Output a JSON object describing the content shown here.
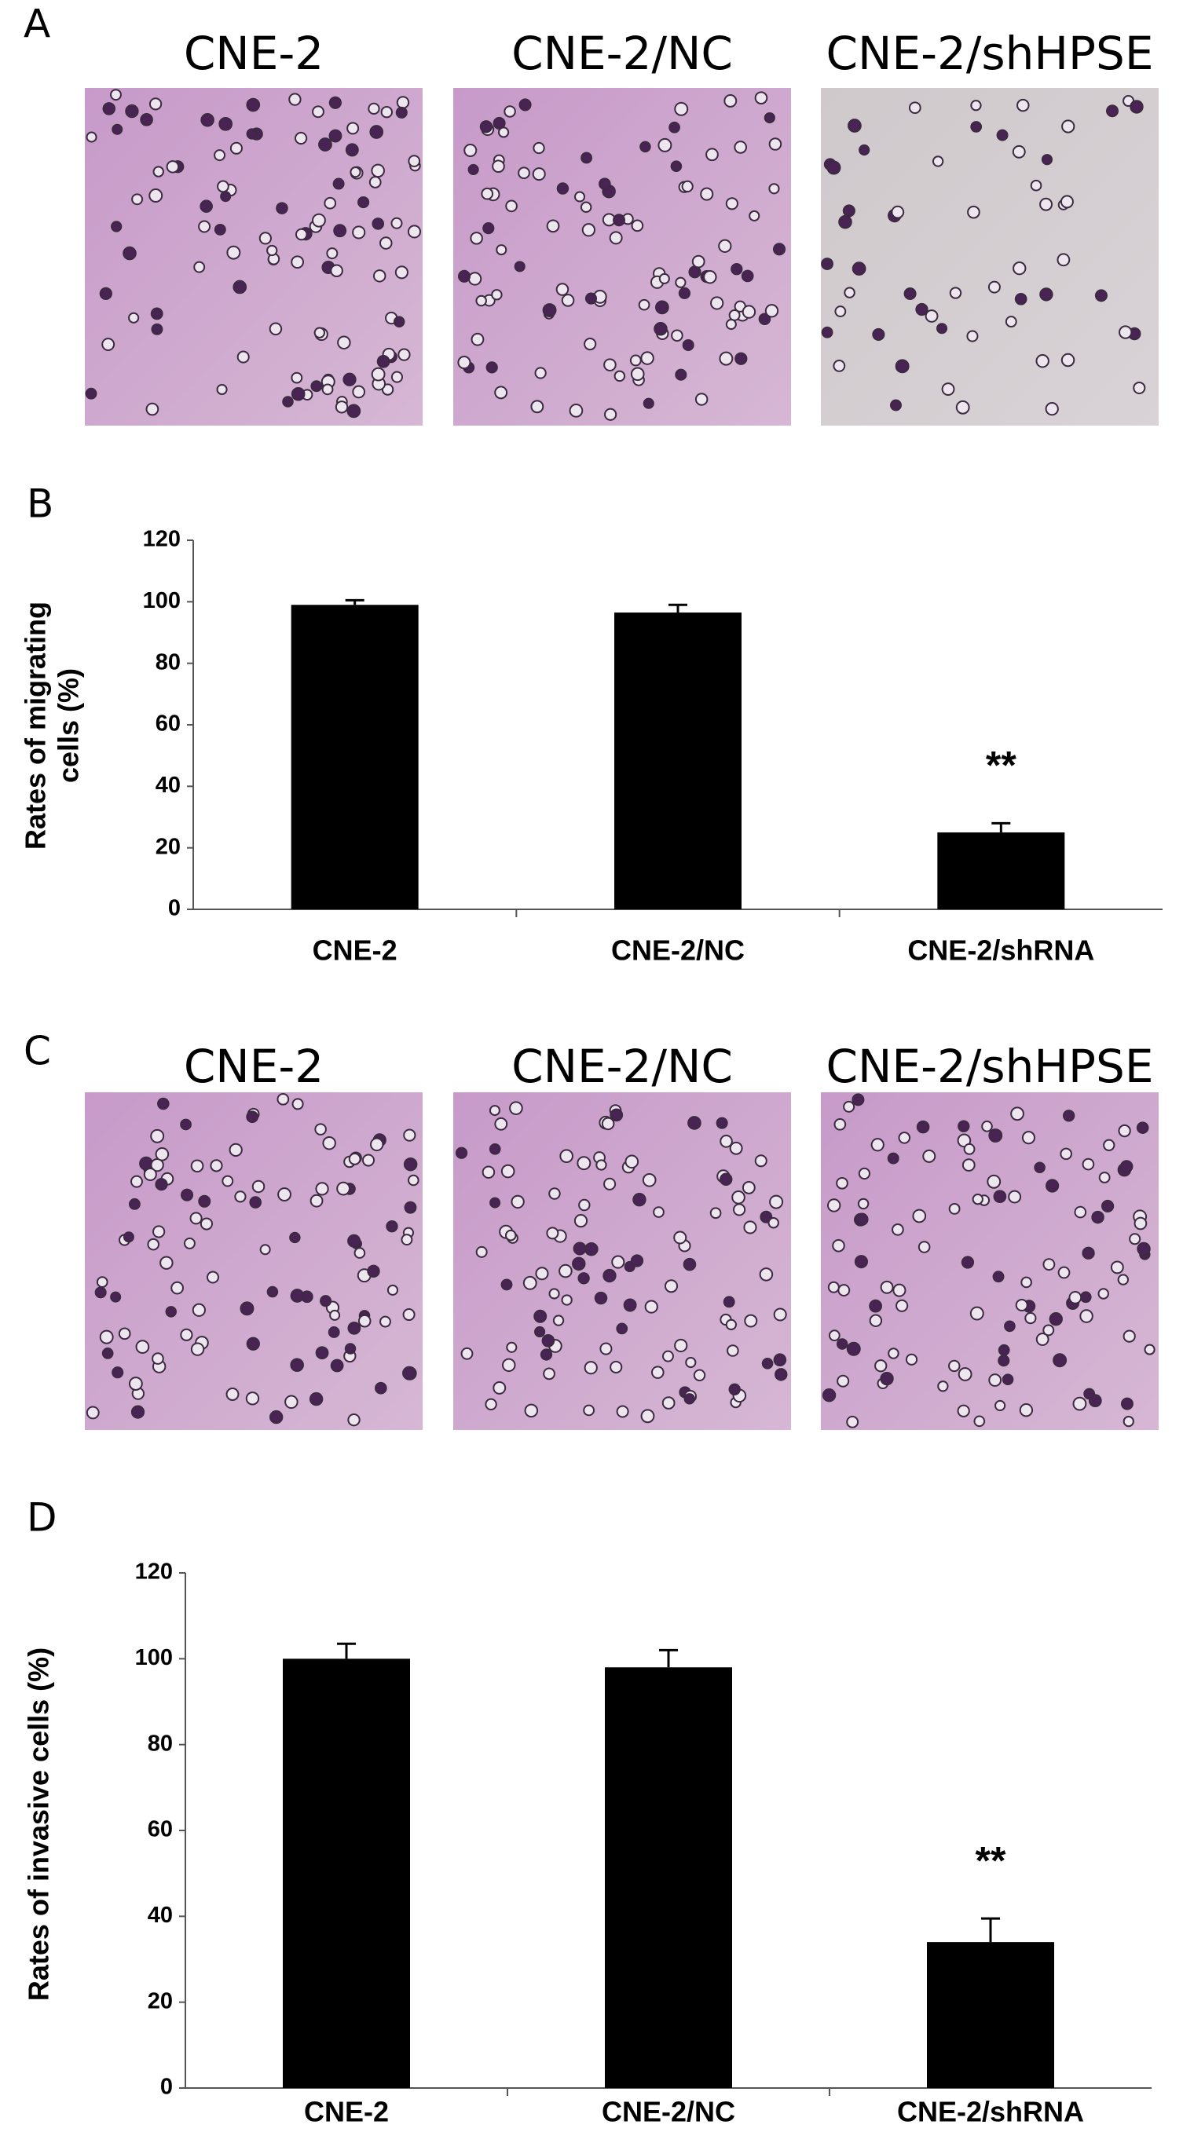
{
  "panels": [
    {
      "label": "A",
      "images": [
        "CNE-2",
        "CNE-2/NC",
        "CNE-2/shHPSE"
      ]
    },
    {
      "label": "C",
      "images": [
        "CNE-2",
        "CNE-2/NC",
        "CNE-2/shHPSE"
      ]
    }
  ],
  "chart_data": [
    {
      "type": "bar",
      "panel_label": "B",
      "y_label": [
        "Rates of migrating",
        "cells (%)"
      ],
      "categories": [
        "CNE-2",
        "CNE-2/NC",
        "CNE-2/shRNA"
      ],
      "values": [
        99,
        96.5,
        25
      ],
      "errors": [
        1.5,
        2.5,
        3
      ],
      "significance": [
        null,
        null,
        "**"
      ],
      "color": "#000000",
      "ylim": [
        0,
        120
      ],
      "yticks": [
        0,
        20,
        40,
        60,
        80,
        100,
        120
      ],
      "grid": false
    },
    {
      "type": "bar",
      "panel_label": "D",
      "y_label": [
        "Rates of invasive cells (%)"
      ],
      "categories": [
        "CNE-2",
        "CNE-2/NC",
        "CNE-2/shRNA"
      ],
      "values": [
        100,
        98,
        34
      ],
      "errors": [
        3.5,
        4,
        5.5
      ],
      "significance": [
        null,
        null,
        "**"
      ],
      "color": "#000000",
      "ylim": [
        0,
        120
      ],
      "yticks": [
        0,
        20,
        40,
        60,
        80,
        100,
        120
      ],
      "grid": false
    }
  ]
}
